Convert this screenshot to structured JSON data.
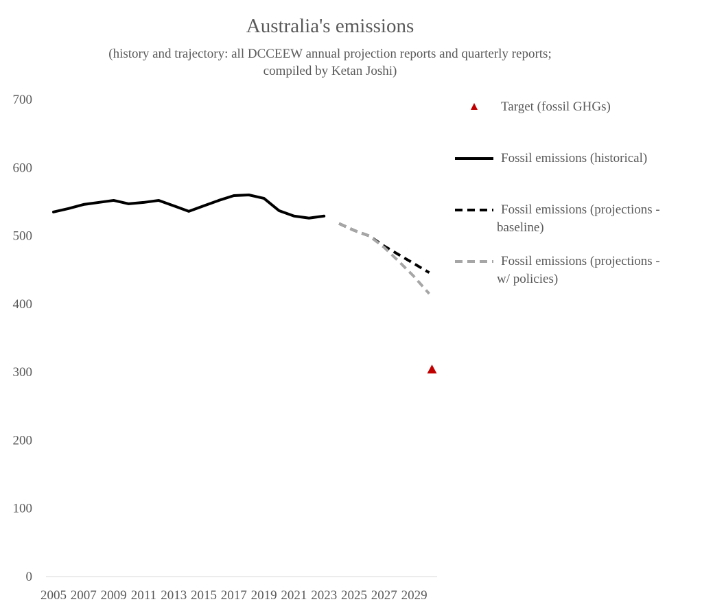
{
  "chart_data": {
    "type": "line",
    "title": "Australia's emissions",
    "subtitle_lines": [
      "(history and trajectory: all DCCEEW annual projection reports and quarterly reports;",
      "compiled by Ketan Joshi)"
    ],
    "xlabel": "",
    "ylabel": "",
    "ylim": [
      0,
      700
    ],
    "yticks": [
      "0",
      "100",
      "200",
      "300",
      "400",
      "500",
      "600",
      "700"
    ],
    "xlim": [
      2005,
      2030
    ],
    "xticks": [
      "2005",
      "2007",
      "2009",
      "2011",
      "2013",
      "2015",
      "2017",
      "2019",
      "2021",
      "2023",
      "2025",
      "2027",
      "2029"
    ],
    "grid": false,
    "legend_position": "right",
    "series": [
      {
        "name": "Fossil emissions (historical)",
        "style": "solid",
        "color": "#000000",
        "x": [
          2005,
          2006,
          2007,
          2008,
          2009,
          2010,
          2011,
          2012,
          2013,
          2014,
          2015,
          2016,
          2017,
          2018,
          2019,
          2020,
          2021,
          2022,
          2023
        ],
        "values": [
          535,
          540,
          546,
          549,
          552,
          547,
          549,
          552,
          544,
          536,
          544,
          552,
          559,
          560,
          555,
          537,
          529,
          526,
          529
        ]
      },
      {
        "name": "Fossil emissions (projections - baseline)",
        "style": "dashed",
        "color": "#000000",
        "x": [
          2024,
          2025,
          2026,
          2027,
          2028,
          2029,
          2030
        ],
        "values": [
          518,
          508,
          500,
          485,
          472,
          459,
          446
        ]
      },
      {
        "name": "Fossil emissions (projections - w/ policies)",
        "style": "dashed",
        "color": "#a6a6a6",
        "x": [
          2024,
          2025,
          2026,
          2027,
          2028,
          2029,
          2030
        ],
        "values": [
          518,
          508,
          500,
          483,
          462,
          440,
          415
        ]
      },
      {
        "name": "Target (fossil GHGs)",
        "style": "marker-triangle",
        "color": "#c00000",
        "x": [
          2030
        ],
        "values": [
          304
        ]
      }
    ],
    "legend": [
      {
        "label_lines": [
          "Target (fossil GHGs)"
        ],
        "kind": "triangle",
        "color": "#c00000"
      },
      {
        "label_lines": [
          "Fossil emissions (historical)"
        ],
        "kind": "solid",
        "color": "#000000"
      },
      {
        "label_lines": [
          "Fossil emissions (projections -",
          "baseline)"
        ],
        "kind": "dashed",
        "color": "#000000"
      },
      {
        "label_lines": [
          "Fossil emissions (projections -",
          "w/ policies)"
        ],
        "kind": "dashed",
        "color": "#a6a6a6"
      }
    ]
  }
}
